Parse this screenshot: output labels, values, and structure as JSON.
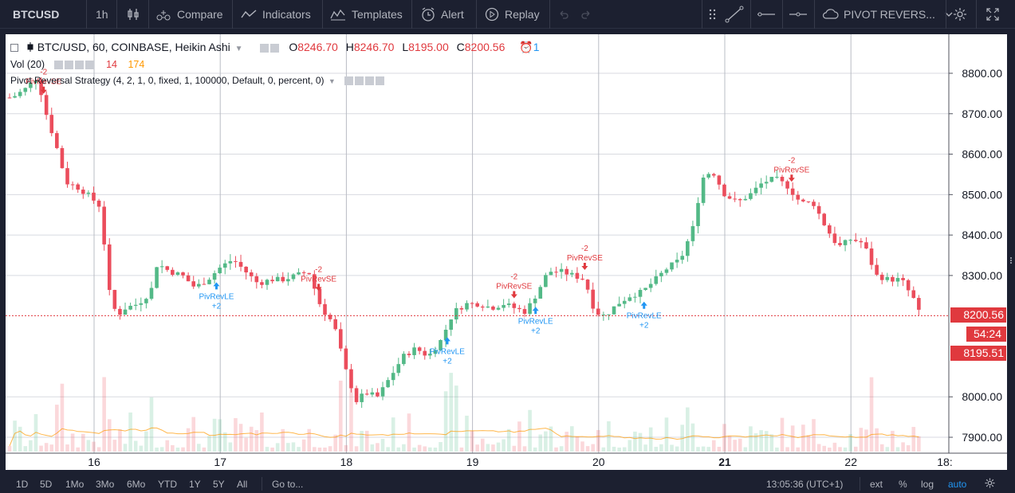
{
  "toolbar": {
    "symbol": "BTCUSD",
    "interval": "1h",
    "compare": "Compare",
    "indicators": "Indicators",
    "templates": "Templates",
    "alert": "Alert",
    "replay": "Replay",
    "strategy_select": "PIVOT REVERS..."
  },
  "legend": {
    "main_title": "BTC/USD, 60, COINBASE, Heikin Ashi",
    "o_label": "O",
    "o_value": "8246.70",
    "h_label": "H",
    "h_value": "8246.70",
    "l_label": "L",
    "l_value": "8195.00",
    "c_label": "C",
    "c_value": "8200.56",
    "alert_count": "1",
    "vol_title": "Vol (20)",
    "vol_value": "14",
    "vol_ma": "174",
    "strategy_title": "Pivot Reversal Strategy (4, 2, 1, 0, fixed, 1, 100000, Default, 0, percent, 0)"
  },
  "price_axis": {
    "ticks": [
      "8800.00",
      "8700.00",
      "8600.00",
      "8500.00",
      "8400.00",
      "8300.00",
      "8000.00",
      "7900.00"
    ],
    "last_price": "8200.56",
    "countdown": "54:24",
    "low_price": "8195.51"
  },
  "time_axis": [
    "16",
    "17",
    "18",
    "19",
    "20",
    "21",
    "22",
    "18:"
  ],
  "signals": [
    {
      "type": "short",
      "label": "PivRevSE",
      "qty": "-2",
      "day": 15.6
    },
    {
      "type": "long",
      "label": "PivRevLE",
      "qty": "+2",
      "day": 16.97
    },
    {
      "type": "short",
      "label": "PivRevSE",
      "qty": "-2",
      "day": 17.78
    },
    {
      "type": "long",
      "label": "PivRevLE",
      "qty": "+2",
      "day": 18.8
    },
    {
      "type": "short",
      "label": "PivRevSE",
      "qty": "-2",
      "day": 19.33
    },
    {
      "type": "long",
      "label": "PivRevLE",
      "qty": "+2",
      "day": 19.5
    },
    {
      "type": "short",
      "label": "PivRevSE",
      "qty": "-2",
      "day": 19.89
    },
    {
      "type": "long",
      "label": "PivRevLE",
      "qty": "+2",
      "day": 20.36
    },
    {
      "type": "short",
      "label": "PivRevSE",
      "qty": "-2",
      "day": 21.53
    }
  ],
  "bottom": {
    "ranges": [
      "1D",
      "5D",
      "1Mo",
      "3Mo",
      "6Mo",
      "YTD",
      "1Y",
      "5Y",
      "All"
    ],
    "goto": "Go to...",
    "clock": "13:05:36 (UTC+1)",
    "ext": "ext",
    "percent": "%",
    "log": "log",
    "auto": "auto"
  },
  "colors": {
    "up": "#53b987",
    "down": "#eb4d5c",
    "long_signal": "#2196f3",
    "short_signal": "#e0393e",
    "volume_ma": "#ff9800"
  },
  "chart_data": {
    "type": "candlestick",
    "title": "BTC/USD, 60, COINBASE, Heikin Ashi",
    "y_ticks": [
      7900,
      8000,
      8300,
      8400,
      8500,
      8600,
      8700,
      8800
    ],
    "x_labels": [
      "16",
      "17",
      "18",
      "19",
      "20",
      "21",
      "22",
      "18:"
    ],
    "last_close": 8200.56,
    "ohlc_last": {
      "open": 8246.7,
      "high": 8246.7,
      "low": 8195.0,
      "close": 8200.56
    },
    "grid": true,
    "series": [
      {
        "name": "close",
        "points": [
          [
            15.35,
            8740
          ],
          [
            15.45,
            8760
          ],
          [
            15.55,
            8790
          ],
          [
            15.62,
            8700
          ],
          [
            15.7,
            8620
          ],
          [
            15.78,
            8530
          ],
          [
            15.86,
            8520
          ],
          [
            15.95,
            8500
          ],
          [
            16.05,
            8470
          ],
          [
            16.12,
            8260
          ],
          [
            16.18,
            8200
          ],
          [
            16.25,
            8220
          ],
          [
            16.35,
            8230
          ],
          [
            16.45,
            8260
          ],
          [
            16.5,
            8330
          ],
          [
            16.6,
            8310
          ],
          [
            16.7,
            8300
          ],
          [
            16.8,
            8270
          ],
          [
            16.9,
            8290
          ],
          [
            17.0,
            8320
          ],
          [
            17.1,
            8340
          ],
          [
            17.2,
            8310
          ],
          [
            17.3,
            8280
          ],
          [
            17.4,
            8290
          ],
          [
            17.5,
            8290
          ],
          [
            17.6,
            8300
          ],
          [
            17.7,
            8310
          ],
          [
            17.8,
            8220
          ],
          [
            17.9,
            8180
          ],
          [
            18.0,
            8060
          ],
          [
            18.08,
            7990
          ],
          [
            18.15,
            8010
          ],
          [
            18.25,
            8000
          ],
          [
            18.35,
            8050
          ],
          [
            18.45,
            8100
          ],
          [
            18.55,
            8120
          ],
          [
            18.65,
            8100
          ],
          [
            18.75,
            8140
          ],
          [
            18.85,
            8210
          ],
          [
            18.95,
            8230
          ],
          [
            19.05,
            8230
          ],
          [
            19.15,
            8220
          ],
          [
            19.25,
            8230
          ],
          [
            19.33,
            8220
          ],
          [
            19.42,
            8210
          ],
          [
            19.5,
            8250
          ],
          [
            19.6,
            8310
          ],
          [
            19.7,
            8310
          ],
          [
            19.8,
            8300
          ],
          [
            19.89,
            8290
          ],
          [
            19.97,
            8210
          ],
          [
            20.05,
            8200
          ],
          [
            20.15,
            8230
          ],
          [
            20.25,
            8250
          ],
          [
            20.35,
            8260
          ],
          [
            20.45,
            8290
          ],
          [
            20.55,
            8320
          ],
          [
            20.65,
            8340
          ],
          [
            20.75,
            8420
          ],
          [
            20.82,
            8540
          ],
          [
            20.9,
            8560
          ],
          [
            21.0,
            8500
          ],
          [
            21.1,
            8480
          ],
          [
            21.2,
            8500
          ],
          [
            21.3,
            8530
          ],
          [
            21.4,
            8540
          ],
          [
            21.5,
            8520
          ],
          [
            21.6,
            8480
          ],
          [
            21.7,
            8480
          ],
          [
            21.8,
            8420
          ],
          [
            21.9,
            8370
          ],
          [
            22.0,
            8390
          ],
          [
            22.1,
            8380
          ],
          [
            22.2,
            8300
          ],
          [
            22.3,
            8290
          ],
          [
            22.4,
            8290
          ],
          [
            22.5,
            8240
          ],
          [
            22.55,
            8200
          ]
        ]
      }
    ]
  }
}
